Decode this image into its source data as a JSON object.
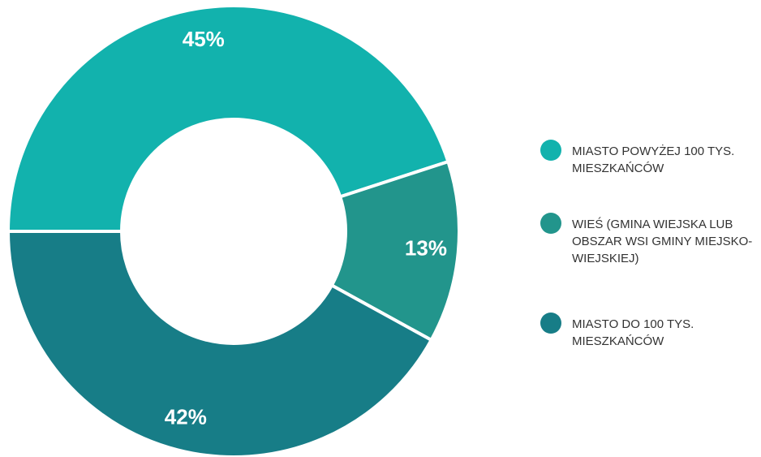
{
  "chart_data": {
    "type": "pie",
    "categories": [
      "MIASTO POWYŻEJ 100 TYS. MIESZKAŃCÓW",
      "WIEŚ (GMINA WIEJSKA LUB OBSZAR WSI GMINY MIEJSKO-WIEJSKIEJ)",
      "MIASTO DO 100 TYS. MIESZKAŃCÓW"
    ],
    "values": [
      45,
      13,
      42
    ],
    "value_labels": [
      "45%",
      "13%",
      "42%"
    ],
    "colors": [
      "#12b2ad",
      "#22958c",
      "#177d87"
    ],
    "legend": "right"
  }
}
